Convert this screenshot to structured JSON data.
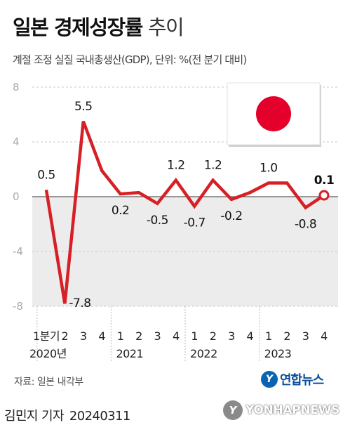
{
  "title": {
    "bold": "일본 경제성장률",
    "light": "추이"
  },
  "subtitle": "계절 조정 실질 국내총생산(GDP), 단위: %(전 분기 대비)",
  "chart_data": {
    "type": "line",
    "x": [
      "1분기",
      "2",
      "3",
      "4",
      "1",
      "2",
      "3",
      "4",
      "1",
      "2",
      "3",
      "4",
      "1",
      "2",
      "3",
      "4"
    ],
    "year_labels": [
      {
        "label": "2020년",
        "index": 0
      },
      {
        "label": "2021",
        "index": 4
      },
      {
        "label": "2022",
        "index": 8
      },
      {
        "label": "2023",
        "index": 12
      }
    ],
    "series": [
      {
        "values": [
          0.5,
          -7.8,
          5.5,
          1.9,
          0.2,
          0.3,
          -0.5,
          1.2,
          -0.7,
          1.2,
          -0.2,
          0.3,
          1.0,
          1.0,
          -0.8,
          0.1
        ]
      }
    ],
    "data_labels": [
      {
        "index": 0,
        "text": "0.5"
      },
      {
        "index": 1,
        "text": "-7.8"
      },
      {
        "index": 2,
        "text": "5.5"
      },
      {
        "index": 4,
        "text": "0.2"
      },
      {
        "index": 6,
        "text": "-0.5"
      },
      {
        "index": 7,
        "text": "1.2"
      },
      {
        "index": 8,
        "text": "-0.7"
      },
      {
        "index": 9,
        "text": "1.2"
      },
      {
        "index": 10,
        "text": "-0.2"
      },
      {
        "index": 12,
        "text": "1.0"
      },
      {
        "index": 14,
        "text": "-0.8"
      },
      {
        "index": 15,
        "text": "0.1"
      }
    ],
    "yticks": [
      -8,
      -4,
      0,
      4,
      8
    ],
    "ylim": [
      -8,
      8
    ],
    "grid": true,
    "negative_region_shaded": true,
    "line_color": "#d71f26",
    "shade_color": "#ececec"
  },
  "flag": {
    "name": "japan-flag",
    "circle_color": "#e4002b"
  },
  "source": "자료: 일본 내각부",
  "logo_text": "연합뉴스",
  "footer": {
    "reporter": "김민지 기자",
    "date": "20240311"
  },
  "watermark": "YONHAPNEWS"
}
